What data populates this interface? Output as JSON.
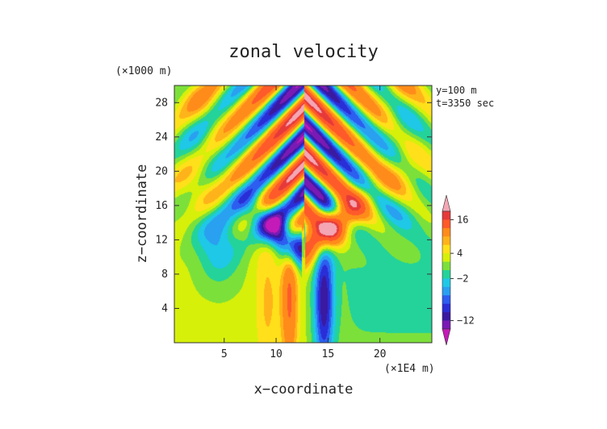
{
  "chart_data": {
    "type": "heatmap",
    "title": "zonal velocity",
    "xlabel": "x−coordinate",
    "ylabel": "z−coordinate",
    "x_unit": "(×1E4 m)",
    "y_unit": "(×1000 m)",
    "xlim": [
      0.2,
      25.0
    ],
    "ylim": [
      0.0,
      30.0
    ],
    "x_ticks": [
      5,
      10,
      15,
      20
    ],
    "y_ticks": [
      4,
      8,
      12,
      16,
      20,
      24,
      28
    ],
    "annotations": [
      "y=100 m",
      "t=3350 sec"
    ],
    "colorbar": {
      "tick_labels": [
        "16",
        "4",
        "−2",
        "−12"
      ],
      "tick_values": [
        16,
        4,
        -2,
        -12
      ],
      "extend": "both",
      "levels": [
        {
          "min": 18,
          "color": "#f4a6b4"
        },
        {
          "min": 16,
          "color": "#e63a3a"
        },
        {
          "min": 12,
          "color": "#ff5a2a"
        },
        {
          "min": 8,
          "color": "#ff8c1a"
        },
        {
          "min": 6,
          "color": "#ffb31a"
        },
        {
          "min": 4,
          "color": "#ffe01a"
        },
        {
          "min": 2,
          "color": "#d6f00a"
        },
        {
          "min": 0,
          "color": "#7ce03a"
        },
        {
          "min": -2,
          "color": "#23d39a"
        },
        {
          "min": -4,
          "color": "#1ec8e6"
        },
        {
          "min": -6,
          "color": "#2aa0f0"
        },
        {
          "min": -8,
          "color": "#2c5ef0"
        },
        {
          "min": -10,
          "color": "#2a2ed6"
        },
        {
          "min": -12,
          "color": "#3a1aa0"
        },
        {
          "min": -14,
          "color": "#7a1ab4"
        },
        {
          "min": -100,
          "color": "#c41ab8"
        }
      ]
    },
    "field": {
      "description": "u(x,z)",
      "background": 2.5,
      "shear_center_x": 12.7
    }
  }
}
